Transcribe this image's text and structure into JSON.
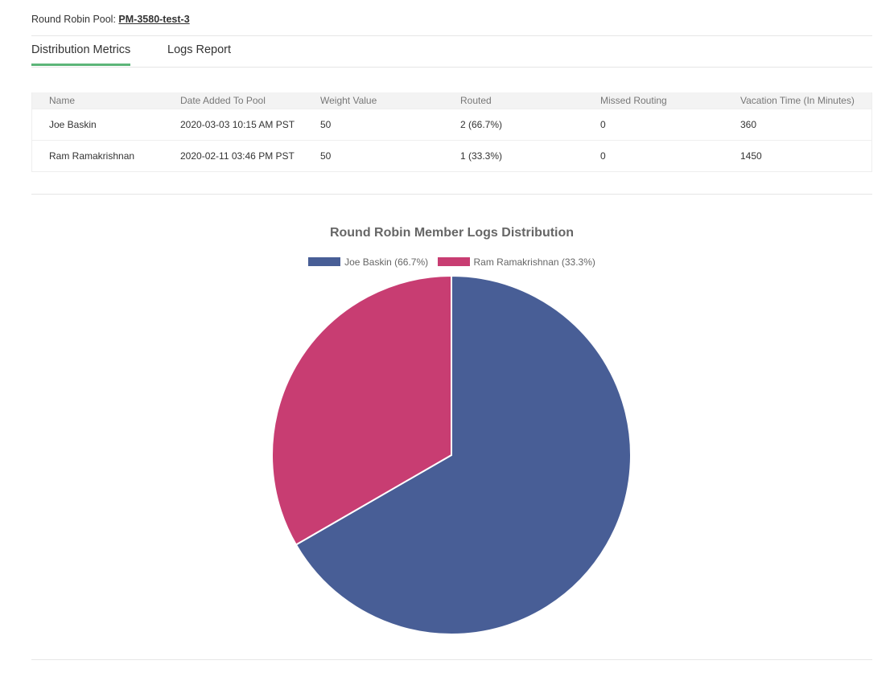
{
  "header": {
    "pool_label": "Round Robin Pool:",
    "pool_name": "PM-3580-test-3"
  },
  "tabs": [
    {
      "label": "Distribution Metrics",
      "active": true
    },
    {
      "label": "Logs Report",
      "active": false
    }
  ],
  "table": {
    "columns": [
      "Name",
      "Date Added To Pool",
      "Weight Value",
      "Routed",
      "Missed Routing",
      "Vacation Time (In Minutes)"
    ],
    "rows": [
      [
        "Joe Baskin",
        "2020-03-03 10:15 AM PST",
        "50",
        "2 (66.7%)",
        "0",
        "360"
      ],
      [
        "Ram Ramakrishnan",
        "2020-02-11 03:46 PM PST",
        "50",
        "1 (33.3%)",
        "0",
        "1450"
      ]
    ]
  },
  "chart_data": {
    "type": "pie",
    "title": "Round Robin Member Logs Distribution",
    "categories": [
      "Joe Baskin (66.7%)",
      "Ram Ramakrishnan (33.3%)"
    ],
    "values": [
      2,
      1
    ],
    "colors": [
      "#485e96",
      "#c83d72"
    ],
    "legend_position": "top"
  }
}
